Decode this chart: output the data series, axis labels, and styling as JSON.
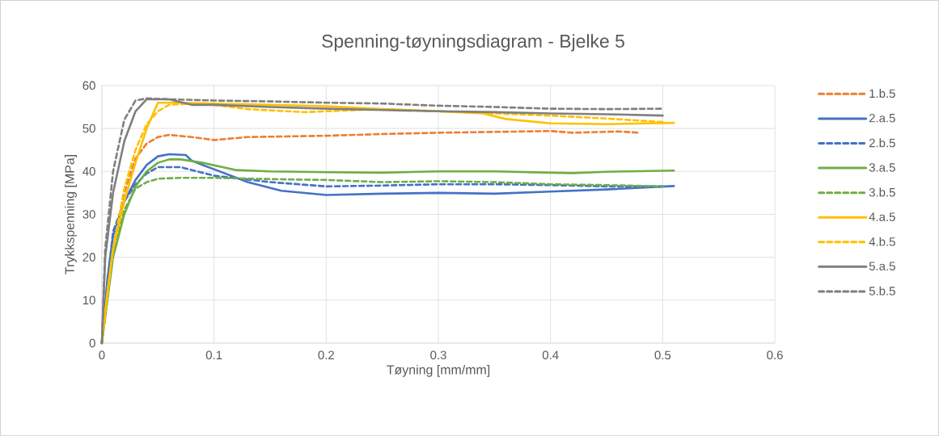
{
  "chart_data": {
    "type": "line",
    "title": "Spenning-tøyningsdiagram - Bjelke 5",
    "xlabel": "Tøyning [mm/mm]",
    "ylabel": "Trykkspenning [MPa]",
    "xlim": [
      0,
      0.6
    ],
    "xticks": [
      0,
      0.1,
      0.2,
      0.3,
      0.4,
      0.5,
      0.6
    ],
    "ylim": [
      0,
      60
    ],
    "yticks": [
      0,
      10,
      20,
      30,
      40,
      50,
      60
    ],
    "grid": true,
    "legend": "right",
    "marker": "none",
    "series": [
      {
        "name": "1.b.5",
        "color": "#ed7d31",
        "line_style": "dashed",
        "x": [
          0,
          0.01,
          0.02,
          0.03,
          0.04,
          0.05,
          0.06,
          0.08,
          0.1,
          0.13,
          0.2,
          0.25,
          0.3,
          0.35,
          0.4,
          0.42,
          0.46,
          0.48
        ],
        "values": [
          0,
          22,
          35,
          43,
          46.5,
          48,
          48.5,
          48,
          47.3,
          48,
          48.3,
          48.7,
          49,
          49.2,
          49.4,
          49,
          49.3,
          49
        ]
      },
      {
        "name": "2.a.5",
        "color": "#4472c4",
        "line_style": "solid",
        "x": [
          0,
          0.005,
          0.01,
          0.02,
          0.03,
          0.04,
          0.05,
          0.06,
          0.075,
          0.08,
          0.1,
          0.13,
          0.16,
          0.2,
          0.25,
          0.3,
          0.35,
          0.4,
          0.45,
          0.51
        ],
        "values": [
          0,
          15,
          25,
          33,
          38,
          41.5,
          43.5,
          44,
          43.8,
          42.5,
          40.5,
          37.5,
          35.5,
          34.5,
          34.8,
          35,
          34.8,
          35.3,
          35.8,
          36.6
        ]
      },
      {
        "name": "2.b.5",
        "color": "#4472c4",
        "line_style": "dashed",
        "x": [
          0,
          0.005,
          0.01,
          0.02,
          0.03,
          0.04,
          0.05,
          0.07,
          0.1,
          0.15,
          0.2,
          0.25,
          0.3,
          0.35,
          0.4,
          0.45,
          0.5
        ],
        "values": [
          0,
          14,
          26,
          33,
          37,
          39.5,
          41,
          41,
          39,
          37.5,
          36.5,
          36.7,
          37,
          37,
          36.8,
          36.5,
          36.5
        ]
      },
      {
        "name": "3.a.5",
        "color": "#70ad47",
        "line_style": "solid",
        "x": [
          0,
          0.01,
          0.02,
          0.03,
          0.04,
          0.05,
          0.06,
          0.07,
          0.09,
          0.12,
          0.15,
          0.2,
          0.25,
          0.3,
          0.35,
          0.4,
          0.42,
          0.45,
          0.51
        ],
        "values": [
          0,
          20,
          30,
          36.5,
          40,
          42,
          42.8,
          42.8,
          42,
          40.3,
          40,
          39.8,
          39.7,
          40,
          40,
          39.7,
          39.6,
          39.9,
          40.2
        ]
      },
      {
        "name": "3.b.5",
        "color": "#70ad47",
        "line_style": "dashed",
        "x": [
          0,
          0.01,
          0.02,
          0.03,
          0.04,
          0.05,
          0.07,
          0.1,
          0.15,
          0.2,
          0.25,
          0.3,
          0.35,
          0.4,
          0.45,
          0.5
        ],
        "values": [
          0,
          22,
          31,
          36,
          37.5,
          38.3,
          38.5,
          38.5,
          38.2,
          38,
          37.5,
          37.7,
          37.5,
          37,
          36.8,
          36.5
        ]
      },
      {
        "name": "4.a.5",
        "color": "#ffc000",
        "line_style": "solid",
        "x": [
          0,
          0.005,
          0.01,
          0.02,
          0.03,
          0.04,
          0.05,
          0.07,
          0.1,
          0.15,
          0.2,
          0.25,
          0.3,
          0.34,
          0.36,
          0.4,
          0.45,
          0.51
        ],
        "values": [
          0,
          12,
          22,
          33,
          42,
          50,
          56,
          56,
          55.8,
          55.5,
          55.2,
          54.5,
          54,
          53.5,
          52.2,
          51.2,
          51,
          51.3
        ]
      },
      {
        "name": "4.b.5",
        "color": "#ffc000",
        "line_style": "dashed",
        "x": [
          0,
          0.01,
          0.02,
          0.03,
          0.04,
          0.05,
          0.06,
          0.08,
          0.1,
          0.13,
          0.18,
          0.2,
          0.25,
          0.3,
          0.35,
          0.4,
          0.45,
          0.5
        ],
        "values": [
          0,
          22,
          36,
          45,
          51,
          54,
          55.5,
          55.8,
          55.5,
          54.5,
          53.8,
          54,
          54.5,
          54,
          53.5,
          53,
          52.3,
          51.5
        ]
      },
      {
        "name": "5.a.5",
        "color": "#7f7f7f",
        "line_style": "solid",
        "x": [
          0,
          0.003,
          0.01,
          0.02,
          0.03,
          0.04,
          0.06,
          0.08,
          0.1,
          0.15,
          0.2,
          0.25,
          0.3,
          0.35,
          0.4,
          0.45,
          0.5
        ],
        "values": [
          0,
          20,
          35,
          47,
          54,
          56.8,
          56.8,
          55.5,
          55.5,
          55,
          54.6,
          54.3,
          54,
          53.8,
          53.5,
          53.3,
          53
        ]
      },
      {
        "name": "5.b.5",
        "color": "#7f7f7f",
        "line_style": "dashed",
        "x": [
          0,
          0.003,
          0.01,
          0.02,
          0.03,
          0.04,
          0.06,
          0.1,
          0.15,
          0.2,
          0.25,
          0.3,
          0.35,
          0.4,
          0.45,
          0.5
        ],
        "values": [
          0,
          22,
          40,
          52,
          56.5,
          57,
          56.8,
          56.5,
          56.3,
          56,
          55.8,
          55.3,
          55,
          54.6,
          54.5,
          54.6
        ]
      }
    ]
  }
}
